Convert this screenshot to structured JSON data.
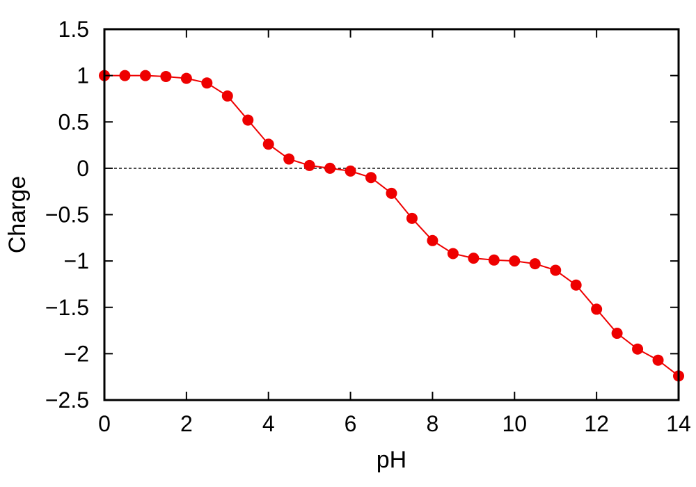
{
  "chart_data": {
    "type": "line",
    "title": "",
    "xlabel": "pH",
    "ylabel": "Charge",
    "xlim": [
      0,
      14
    ],
    "ylim": [
      -2.5,
      1.5
    ],
    "x_ticks": [
      0,
      2,
      4,
      6,
      8,
      10,
      12,
      14
    ],
    "x_tick_labels": [
      "0",
      "2",
      "4",
      "6",
      "8",
      "10",
      "12",
      "14"
    ],
    "y_ticks": [
      1.5,
      1,
      0.5,
      0,
      -0.5,
      -1,
      -1.5,
      -2,
      -2.5
    ],
    "y_tick_labels": [
      "1.5",
      "1",
      "0.5",
      "0",
      "−0.5",
      "−1",
      "−1.5",
      "−2",
      "−2.5"
    ],
    "grid": false,
    "reference_line": {
      "y": 0,
      "style": "dashed"
    },
    "series": [
      {
        "color": "#ee0000",
        "marker": "circle",
        "x": [
          0,
          0.5,
          1,
          1.5,
          2,
          2.5,
          3,
          3.5,
          4,
          4.5,
          5,
          5.5,
          6,
          6.5,
          7,
          7.5,
          8,
          8.5,
          9,
          9.5,
          10,
          10.5,
          11,
          11.5,
          12,
          12.5,
          13,
          13.5,
          14
        ],
        "y": [
          1.0,
          1.0,
          1.0,
          0.99,
          0.97,
          0.92,
          0.78,
          0.52,
          0.26,
          0.1,
          0.03,
          0.0,
          -0.03,
          -0.1,
          -0.27,
          -0.54,
          -0.78,
          -0.92,
          -0.97,
          -0.99,
          -1.0,
          -1.03,
          -1.1,
          -1.26,
          -1.52,
          -1.78,
          -1.95,
          -2.07,
          -2.24
        ]
      }
    ]
  }
}
